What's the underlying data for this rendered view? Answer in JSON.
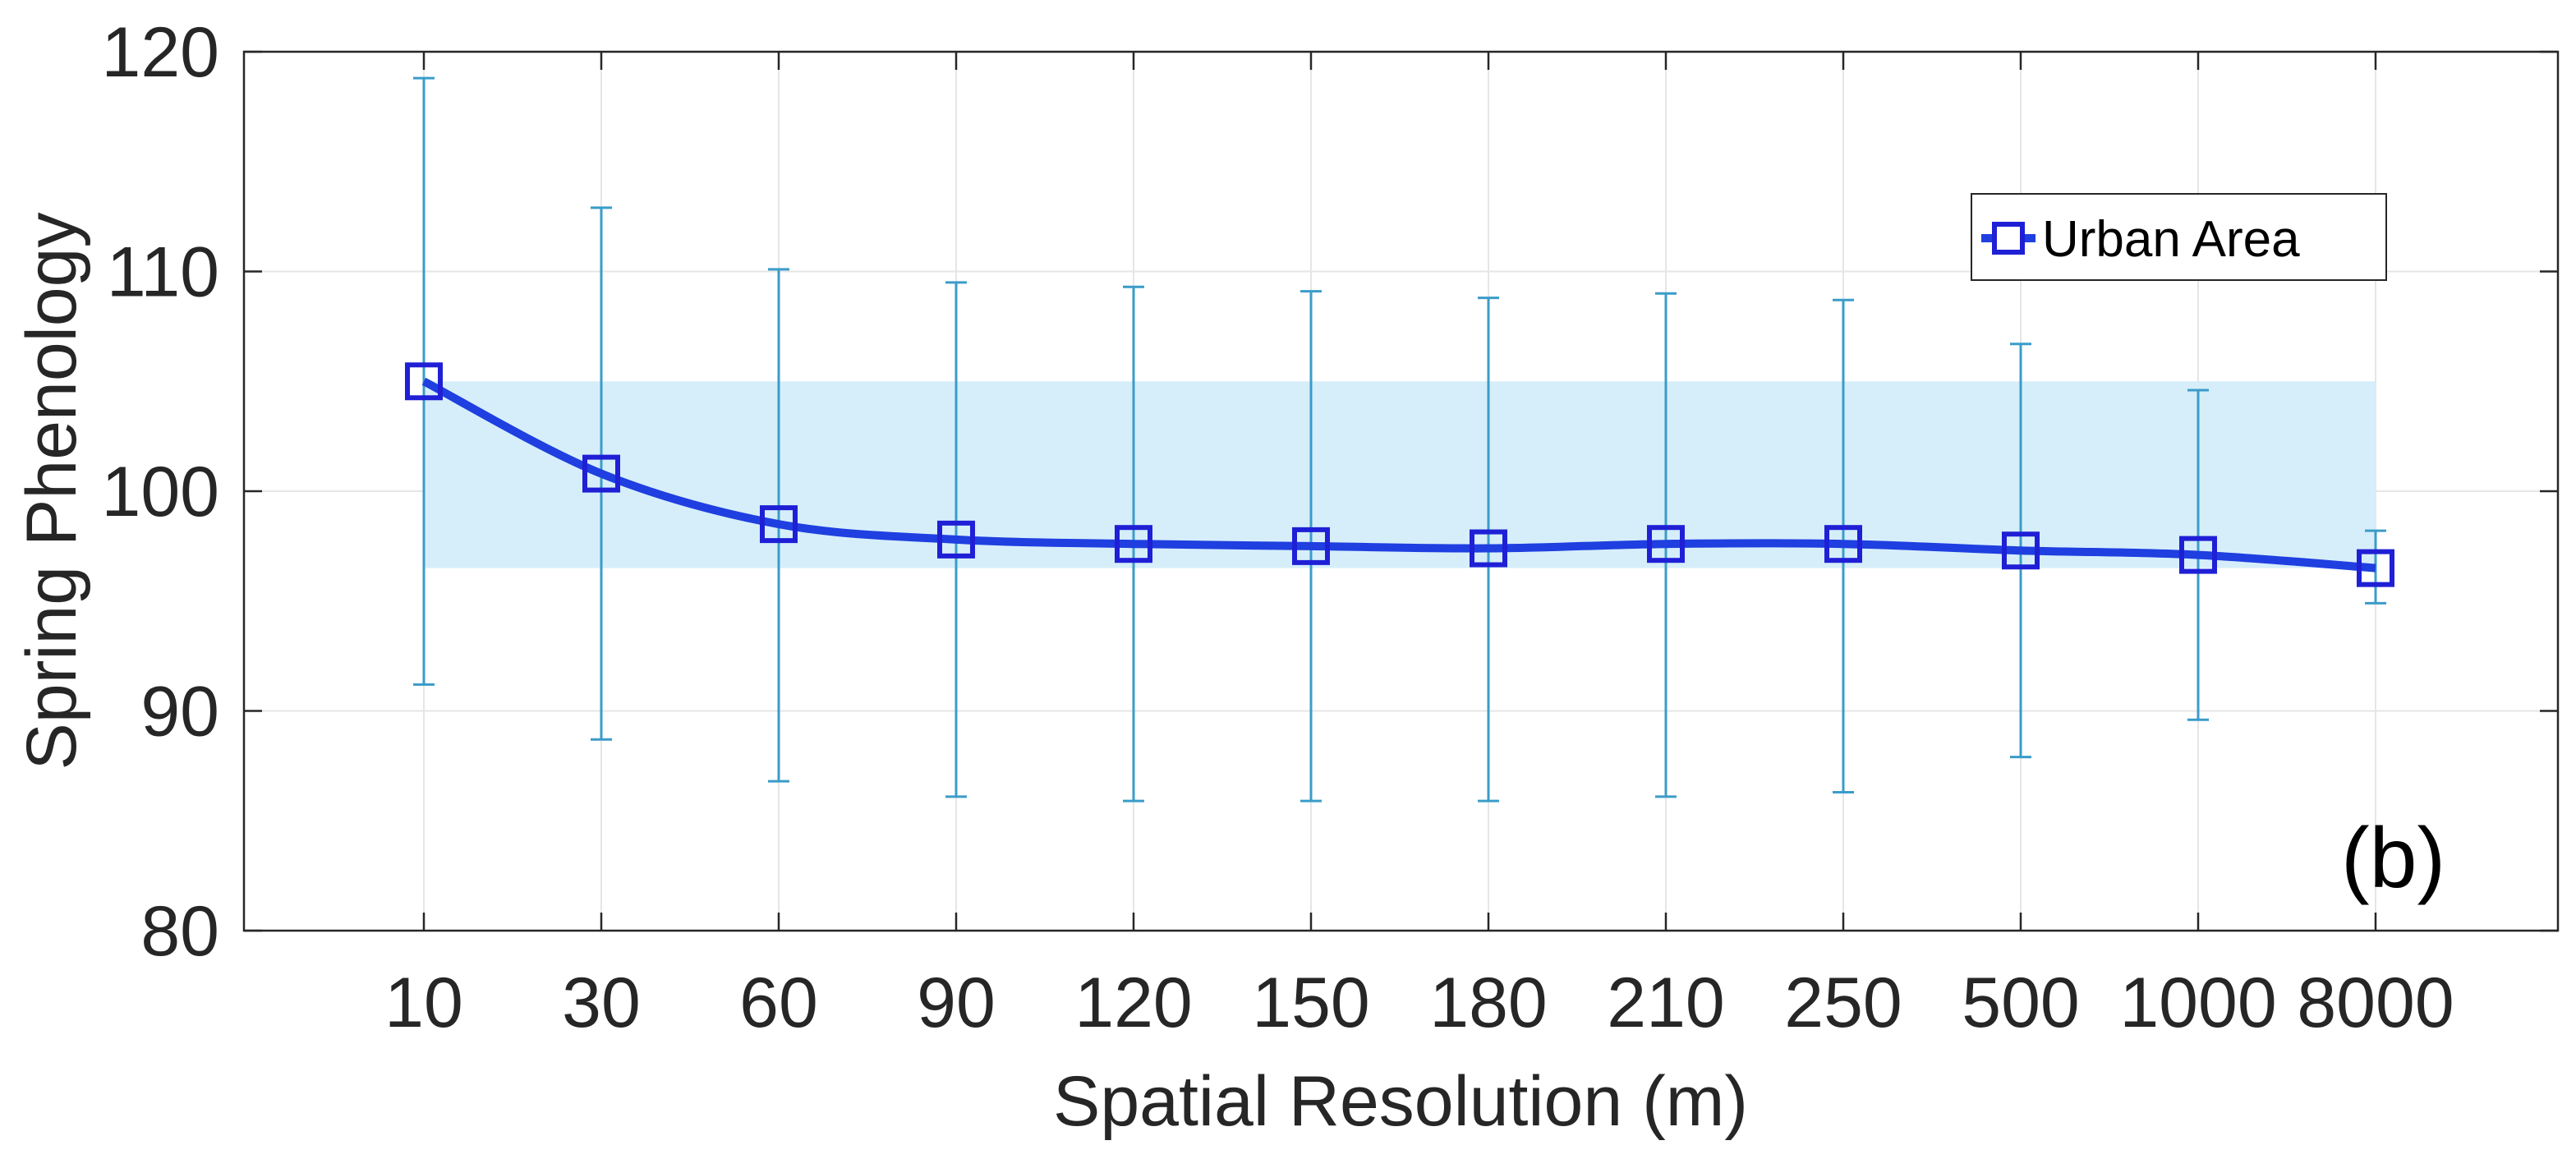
{
  "chart_data": {
    "type": "line",
    "title": "",
    "xlabel": "Spatial Resolution (m)",
    "ylabel": "Spring Phenology",
    "categories": [
      "10",
      "30",
      "60",
      "90",
      "120",
      "150",
      "180",
      "210",
      "250",
      "500",
      "1000",
      "8000"
    ],
    "series": [
      {
        "name": "Urban Area",
        "values": [
          105.0,
          100.8,
          98.5,
          97.8,
          97.6,
          97.5,
          97.4,
          97.6,
          97.6,
          97.3,
          97.1,
          96.5
        ],
        "error_upper": [
          118.8,
          112.9,
          110.1,
          109.5,
          109.3,
          109.1,
          108.8,
          109.0,
          108.7,
          106.7,
          104.6,
          98.2
        ],
        "error_lower": [
          91.2,
          88.7,
          86.8,
          86.1,
          85.9,
          85.9,
          85.9,
          86.1,
          86.3,
          87.9,
          89.6,
          94.9
        ]
      }
    ],
    "shaded_band": [
      96.5,
      105.0
    ],
    "ylim": [
      80,
      120
    ],
    "yticks": [
      80,
      90,
      100,
      110,
      120
    ],
    "grid": true,
    "legend": {
      "position": "top-right",
      "entries": [
        "Urban Area"
      ]
    },
    "annotation": "(b)",
    "colors": {
      "line": "#1f3fe0",
      "marker": "#1f1fd6",
      "errorbar": "#3a9cc9",
      "band": "#d6eefa",
      "grid": "#e6e6e6",
      "axis": "#262626"
    }
  }
}
